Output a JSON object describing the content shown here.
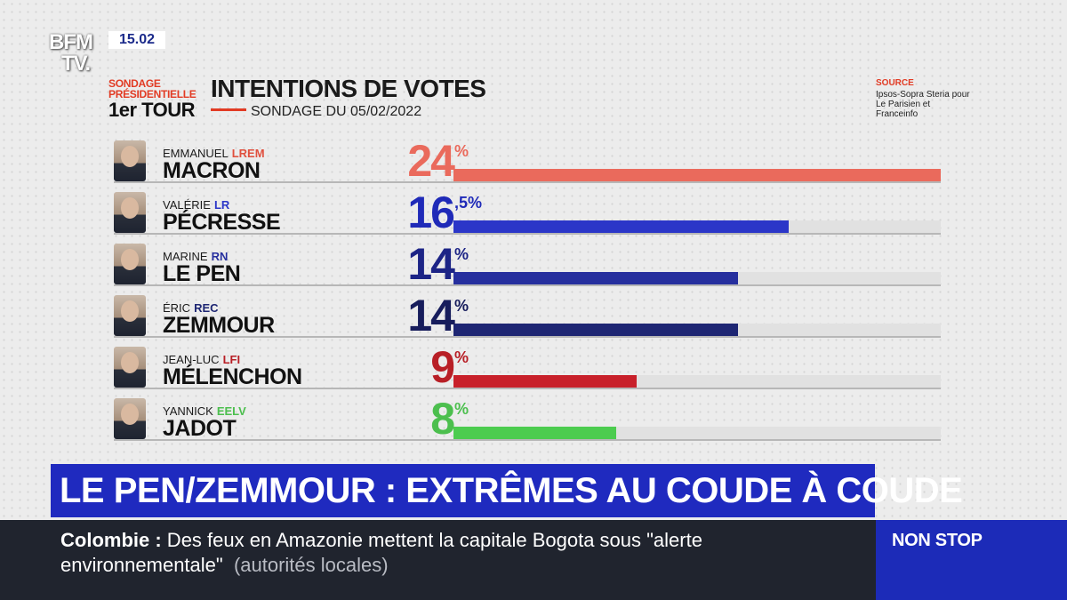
{
  "channel": {
    "logo_line1": "BFM",
    "logo_line2": "TV.",
    "clock": "15.02"
  },
  "header": {
    "tag_line1": "SONDAGE",
    "tag_line2": "PRÉSIDENTIELLE",
    "tag_line3": "1er TOUR",
    "title": "INTENTIONS DE VOTES",
    "subtitle": "SONDAGE DU 05/02/2022",
    "source_label": "SOURCE",
    "source_text": "Ipsos-Sopra Steria pour Le Parisien et Franceinfo"
  },
  "chart_data": {
    "type": "bar",
    "title": "INTENTIONS DE VOTES",
    "subtitle": "SONDAGE DU 05/02/2022",
    "unit": "%",
    "xlim": [
      0,
      24
    ],
    "candidates": [
      {
        "first": "EMMANUEL",
        "last": "MACRON",
        "party": "LREM",
        "value": 24,
        "value_label": "24",
        "suffix": "%",
        "color": "#ea6a5c",
        "party_color": "#e0503e",
        "pct_color": "#ea6a5c"
      },
      {
        "first": "VALÉRIE",
        "last": "PÉCRESSE",
        "party": "LR",
        "value": 16.5,
        "value_label": "16",
        "suffix": ",5%",
        "color": "#2b36c8",
        "party_color": "#2b36c8",
        "pct_color": "#1f2ab8"
      },
      {
        "first": "MARINE",
        "last": "LE PEN",
        "party": "RN",
        "value": 14,
        "value_label": "14",
        "suffix": "%",
        "color": "#262f9e",
        "party_color": "#262f9e",
        "pct_color": "#1c2486"
      },
      {
        "first": "ÉRIC",
        "last": "ZEMMOUR",
        "party": "REC",
        "value": 14,
        "value_label": "14",
        "suffix": "%",
        "color": "#1e2673",
        "party_color": "#1e2673",
        "pct_color": "#171d5c"
      },
      {
        "first": "JEAN-LUC",
        "last": "MÉLENCHON",
        "party": "LFI",
        "value": 9,
        "value_label": "9",
        "suffix": "%",
        "color": "#c8202a",
        "party_color": "#b81f26",
        "pct_color": "#b81f26"
      },
      {
        "first": "YANNICK",
        "last": "JADOT",
        "party": "EELV",
        "value": 8,
        "value_label": "8",
        "suffix": "%",
        "color": "#4ccc4f",
        "party_color": "#4cbf4e",
        "pct_color": "#4cbf4e"
      }
    ]
  },
  "banner": {
    "headline": "LE PEN/ZEMMOUR : EXTRÊMES AU COUDE À COUDE"
  },
  "ticker": {
    "topic": "Colombie",
    "sep": " :",
    "line1_text": " Des feux en Amazonie mettent la capitale Bogota sous \"alerte",
    "line2_text": "environnementale\"",
    "line2_paren": "(autorités locales)"
  },
  "nonstop": {
    "label": "NON STOP"
  }
}
